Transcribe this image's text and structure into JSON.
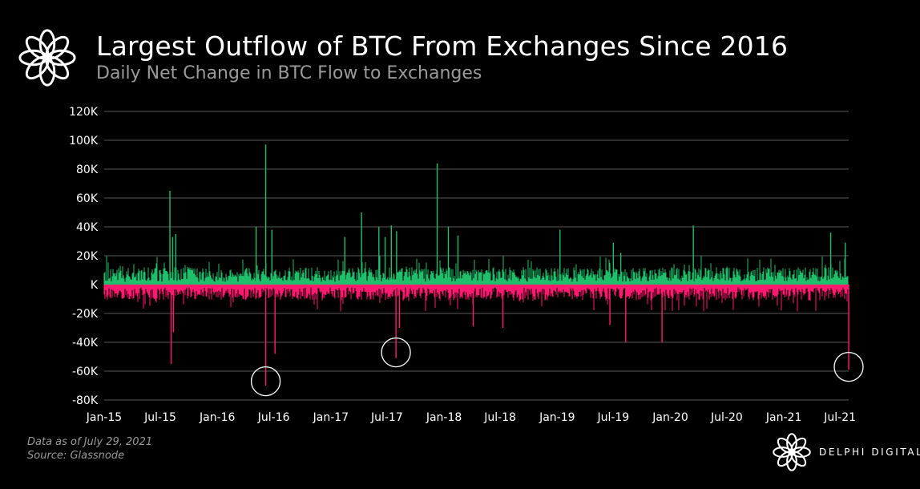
{
  "header": {
    "title": "Largest Outflow of BTC From Exchanges Since 2016",
    "subtitle": "Daily Net Change in BTC Flow to Exchanges"
  },
  "footer": {
    "data_note": "Data as of July 29, 2021",
    "source_note": "Source: Glassnode",
    "brand": "DELPHI DIGITAL"
  },
  "icons": {
    "header_logo": "delphi-flower-logo-icon",
    "footer_logo": "delphi-flower-logo-icon"
  },
  "colors": {
    "background": "#000000",
    "inflow": "#1fbf6c",
    "outflow": "#ff1a70",
    "grid": "#5a5a5a",
    "text": "#ffffff",
    "muted": "#9a9a9a",
    "highlight_circle": "#ffffff"
  },
  "chart_data": {
    "type": "bar",
    "title": "Largest Outflow of BTC From Exchanges Since 2016",
    "subtitle": "Daily Net Change in BTC Flow to Exchanges",
    "xlabel": "",
    "ylabel": "",
    "x_range": [
      "2015-01-01",
      "2021-07-29"
    ],
    "x_ticks": [
      "Jan-15",
      "Jul-15",
      "Jan-16",
      "Jul-16",
      "Jan-17",
      "Jul-17",
      "Jan-18",
      "Jul-18",
      "Jan-19",
      "Jul-19",
      "Jan-20",
      "Jul-20",
      "Jan-21",
      "Jul-21"
    ],
    "ylim": [
      -80000,
      120000
    ],
    "y_ticks": [
      120000,
      100000,
      80000,
      60000,
      40000,
      20000,
      0,
      -20000,
      -40000,
      -60000,
      -80000
    ],
    "y_tick_labels": [
      "120K",
      "100K",
      "80K",
      "60K",
      "40K",
      "20K",
      "K",
      "-20K",
      "-40K",
      "-60K",
      "-80K"
    ],
    "grid": "horizontal",
    "series": [
      {
        "kind": "inflow",
        "values": [
          {
            "date": "2015-08-01",
            "value": 65000
          },
          {
            "date": "2015-08-10",
            "value": 33000
          },
          {
            "date": "2015-08-20",
            "value": 35000
          },
          {
            "date": "2016-05-05",
            "value": 40000
          },
          {
            "date": "2016-06-05",
            "value": 97000
          },
          {
            "date": "2016-06-25",
            "value": 38000
          },
          {
            "date": "2017-02-15",
            "value": 33000
          },
          {
            "date": "2017-04-10",
            "value": 50000
          },
          {
            "date": "2017-06-05",
            "value": 40000
          },
          {
            "date": "2017-06-25",
            "value": 33000
          },
          {
            "date": "2017-07-15",
            "value": 41000
          },
          {
            "date": "2017-08-01",
            "value": 37000
          },
          {
            "date": "2017-12-10",
            "value": 84000
          },
          {
            "date": "2018-01-15",
            "value": 40000
          },
          {
            "date": "2018-02-15",
            "value": 34000
          },
          {
            "date": "2019-01-10",
            "value": 38000
          },
          {
            "date": "2019-07-01",
            "value": 29000
          },
          {
            "date": "2019-07-25",
            "value": 22000
          },
          {
            "date": "2020-03-15",
            "value": 41000
          },
          {
            "date": "2021-06-01",
            "value": 36000
          },
          {
            "date": "2021-07-18",
            "value": 29000
          }
        ]
      },
      {
        "kind": "outflow",
        "values": [
          {
            "date": "2015-08-05",
            "value": -55000
          },
          {
            "date": "2015-08-12",
            "value": -33000
          },
          {
            "date": "2016-06-05",
            "value": -70000
          },
          {
            "date": "2016-07-05",
            "value": -48000
          },
          {
            "date": "2017-07-30",
            "value": -51000
          },
          {
            "date": "2017-08-10",
            "value": -30000
          },
          {
            "date": "2018-04-05",
            "value": -29000
          },
          {
            "date": "2018-07-10",
            "value": -30000
          },
          {
            "date": "2019-06-20",
            "value": -28000
          },
          {
            "date": "2019-08-10",
            "value": -40000
          },
          {
            "date": "2019-12-05",
            "value": -40000
          },
          {
            "date": "2021-07-29",
            "value": -59000
          }
        ]
      }
    ],
    "annotations": [
      {
        "type": "circle",
        "date": "2016-06-05",
        "value": -67000
      },
      {
        "type": "circle",
        "date": "2017-07-30",
        "value": -47000
      },
      {
        "type": "circle",
        "date": "2021-07-29",
        "value": -57000
      }
    ]
  }
}
